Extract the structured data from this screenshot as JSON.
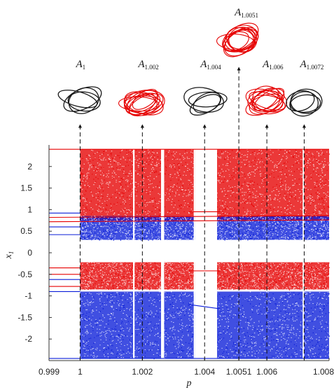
{
  "chart_data": {
    "type": "scatter",
    "title": "",
    "xlabel": "p",
    "ylabel": "x1",
    "xlabel_text": "p",
    "ylabel_main": "x",
    "ylabel_sub": "1",
    "xlim": [
      0.999,
      1.008
    ],
    "ylim": [
      -2.5,
      2.5
    ],
    "x_ticks": [
      {
        "value": 0.999,
        "label": "0.999"
      },
      {
        "value": 1.0,
        "label": "1"
      },
      {
        "value": 1.002,
        "label": "1.002"
      },
      {
        "value": 1.004,
        "label": "1.004"
      },
      {
        "value": 1.0051,
        "label": "1.0051"
      },
      {
        "value": 1.006,
        "label": "1.006"
      },
      {
        "value": 1.008,
        "label": "1.008"
      }
    ],
    "y_ticks": [
      {
        "value": 2,
        "label": "2"
      },
      {
        "value": 1.5,
        "label": "1.5"
      },
      {
        "value": 1,
        "label": "1"
      },
      {
        "value": 0.5,
        "label": "0.5"
      },
      {
        "value": 0,
        "label": "0"
      },
      {
        "value": -0.5,
        "label": "-0.5"
      },
      {
        "value": -1,
        "label": "-1"
      },
      {
        "value": -1.5,
        "label": "-1.5"
      },
      {
        "value": -2,
        "label": "-2"
      }
    ],
    "grid": false,
    "colors": {
      "series_red": "#e60000",
      "series_blue": "#0a1ed8",
      "attractor_black": "#1a1a1a"
    },
    "series": [
      {
        "color": "#e60000",
        "bands": [
          {
            "x": [
              1.0,
              1.008
            ],
            "y": [
              0.75,
              2.4
            ]
          },
          {
            "x": [
              1.0,
              1.008
            ],
            "y": [
              -0.85,
              -0.22
            ]
          }
        ],
        "periodic_lines": [
          {
            "x": [
              0.999,
              1.008
            ],
            "y": [
              2.4,
              2.4
            ]
          },
          {
            "x": [
              0.999,
              1.008
            ],
            "y": [
              0.82,
              0.86
            ]
          },
          {
            "x": [
              0.999,
              1.008
            ],
            "y": [
              0.72,
              0.76
            ]
          },
          {
            "x": [
              0.999,
              1.0
            ],
            "y": [
              -0.35,
              -0.35
            ]
          },
          {
            "x": [
              0.999,
              1.0
            ],
            "y": [
              -0.5,
              -0.5
            ]
          },
          {
            "x": [
              0.999,
              1.0
            ],
            "y": [
              -0.78,
              -0.78
            ]
          },
          {
            "x": [
              1.0035,
              1.0045
            ],
            "y": [
              0.95,
              0.95
            ]
          },
          {
            "x": [
              1.0035,
              1.0045
            ],
            "y": [
              -0.42,
              -0.42
            ]
          }
        ]
      },
      {
        "color": "#0a1ed8",
        "bands": [
          {
            "x": [
              1.0,
              1.008
            ],
            "y": [
              0.3,
              0.85
            ]
          },
          {
            "x": [
              1.0,
              1.008
            ],
            "y": [
              -2.45,
              -0.9
            ]
          }
        ],
        "periodic_lines": [
          {
            "x": [
              0.999,
              1.008
            ],
            "y": [
              -2.45,
              -2.45
            ]
          },
          {
            "x": [
              0.999,
              1.0
            ],
            "y": [
              0.92,
              0.92
            ]
          },
          {
            "x": [
              0.999,
              1.0
            ],
            "y": [
              0.6,
              0.6
            ]
          },
          {
            "x": [
              0.999,
              1.0
            ],
            "y": [
              0.42,
              0.42
            ]
          },
          {
            "x": [
              0.999,
              1.0
            ],
            "y": [
              -0.62,
              -0.62
            ]
          },
          {
            "x": [
              0.999,
              1.0
            ],
            "y": [
              -0.9,
              -0.9
            ]
          },
          {
            "x": [
              1.0035,
              1.0045
            ],
            "y": [
              -1.2,
              -1.3
            ]
          }
        ]
      }
    ],
    "gaps": [
      1.0017,
      1.00175,
      1.0026,
      1.0027,
      1.00365,
      1.0037,
      1.0038,
      1.00385,
      1.00395,
      1.004,
      1.00425,
      1.0043,
      1.00715,
      1.0072
    ],
    "window_regions": [
      [
        1.0037,
        1.0044
      ]
    ],
    "markers": [
      {
        "x": 1.0,
        "label_main": "A",
        "label_sub": "1",
        "attractor_color": "#1a1a1a"
      },
      {
        "x": 1.002,
        "label_main": "A",
        "label_sub": "1.002",
        "attractor_color": "#e60000"
      },
      {
        "x": 1.004,
        "label_main": "A",
        "label_sub": "1.004",
        "attractor_color": "#1a1a1a"
      },
      {
        "x": 1.0051,
        "label_main": "A",
        "label_sub": "1.0051",
        "attractor_color": "#e60000"
      },
      {
        "x": 1.006,
        "label_main": "A",
        "label_sub": "1.006",
        "attractor_color": "#e60000"
      },
      {
        "x": 1.0072,
        "label_main": "A",
        "label_sub": "1.0072",
        "attractor_color": "#1a1a1a"
      }
    ]
  }
}
